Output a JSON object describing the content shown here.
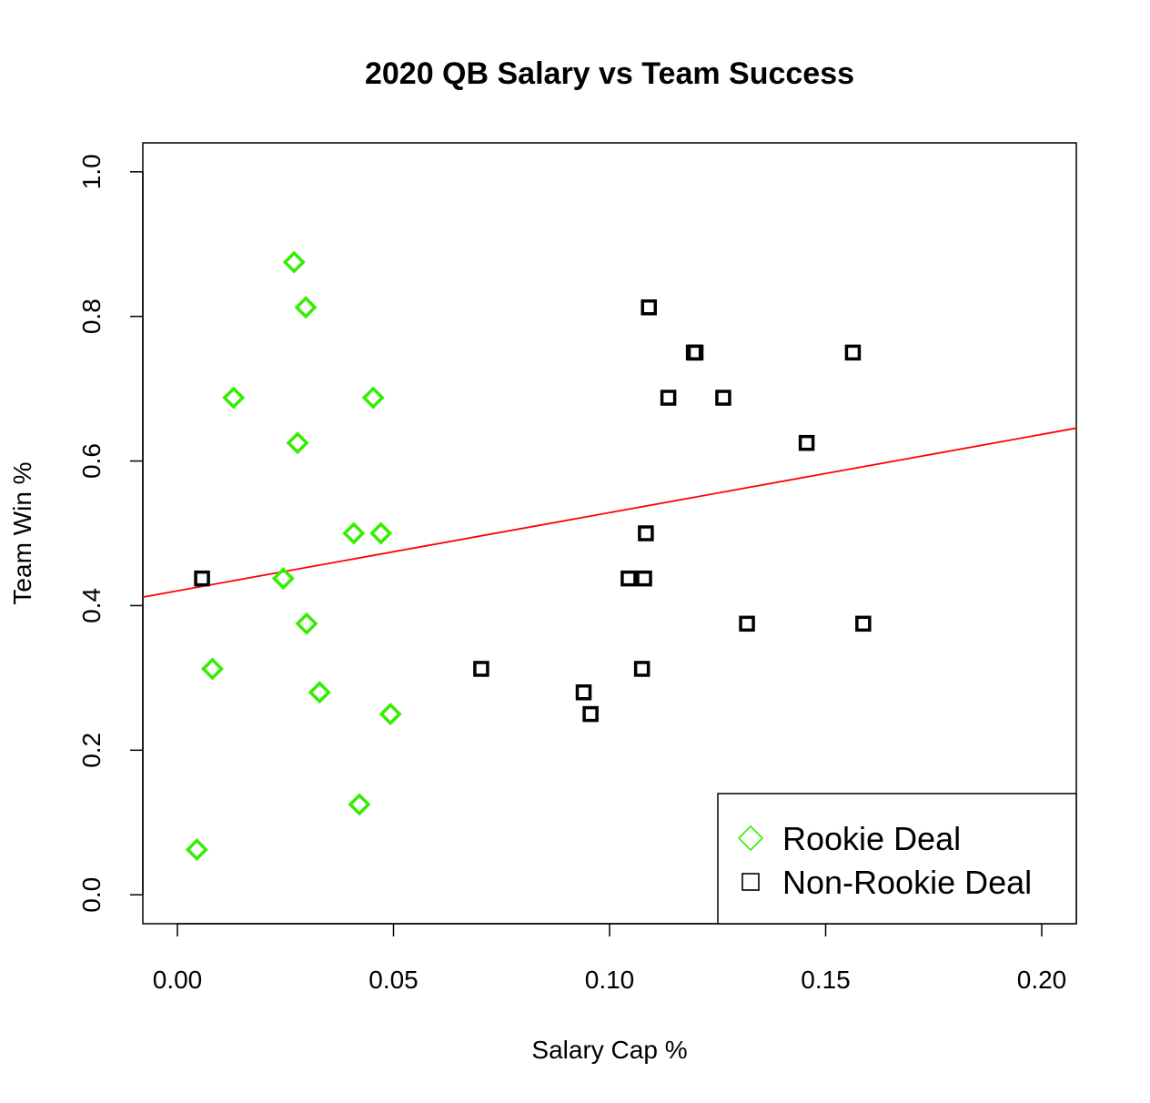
{
  "chart_data": {
    "type": "scatter",
    "title": "2020 QB Salary vs Team Success",
    "xlabel": "Salary Cap %",
    "ylabel": "Team Win %",
    "xlim": [
      -0.008,
      0.208
    ],
    "ylim": [
      -0.04,
      1.04
    ],
    "xticks": [
      0.0,
      0.05,
      0.1,
      0.15,
      0.2
    ],
    "xtick_labels": [
      "0.00",
      "0.05",
      "0.10",
      "0.15",
      "0.20"
    ],
    "yticks": [
      0.0,
      0.2,
      0.4,
      0.6,
      0.8,
      1.0
    ],
    "ytick_labels": [
      "0.0",
      "0.2",
      "0.4",
      "0.6",
      "0.8",
      "1.0"
    ],
    "grid": false,
    "legend_position": "bottom-right",
    "series": [
      {
        "name": "Rookie Deal",
        "marker": "diamond",
        "color": "#33ee00",
        "points": [
          {
            "x": 0.027,
            "y": 0.875
          },
          {
            "x": 0.0297,
            "y": 0.8125
          },
          {
            "x": 0.013,
            "y": 0.6875
          },
          {
            "x": 0.0453,
            "y": 0.6875
          },
          {
            "x": 0.0278,
            "y": 0.625
          },
          {
            "x": 0.0408,
            "y": 0.5
          },
          {
            "x": 0.0471,
            "y": 0.5
          },
          {
            "x": 0.0245,
            "y": 0.4375
          },
          {
            "x": 0.0299,
            "y": 0.375
          },
          {
            "x": 0.0081,
            "y": 0.3125
          },
          {
            "x": 0.0329,
            "y": 0.28
          },
          {
            "x": 0.0493,
            "y": 0.25
          },
          {
            "x": 0.0421,
            "y": 0.125
          },
          {
            "x": 0.0045,
            "y": 0.0625
          }
        ]
      },
      {
        "name": "Non-Rookie Deal",
        "marker": "square",
        "color": "#000000",
        "points": [
          {
            "x": 0.1091,
            "y": 0.8125
          },
          {
            "x": 0.1195,
            "y": 0.75
          },
          {
            "x": 0.1199,
            "y": 0.75
          },
          {
            "x": 0.1563,
            "y": 0.75
          },
          {
            "x": 0.1136,
            "y": 0.6875
          },
          {
            "x": 0.1263,
            "y": 0.6875
          },
          {
            "x": 0.1456,
            "y": 0.625
          },
          {
            "x": 0.1084,
            "y": 0.5
          },
          {
            "x": 0.0057,
            "y": 0.4375
          },
          {
            "x": 0.1044,
            "y": 0.4375
          },
          {
            "x": 0.108,
            "y": 0.4375
          },
          {
            "x": 0.1318,
            "y": 0.375
          },
          {
            "x": 0.1587,
            "y": 0.375
          },
          {
            "x": 0.0703,
            "y": 0.3125
          },
          {
            "x": 0.1075,
            "y": 0.3125
          },
          {
            "x": 0.094,
            "y": 0.28
          },
          {
            "x": 0.0956,
            "y": 0.25
          }
        ]
      }
    ],
    "regression_line": {
      "intercept": 0.4204,
      "slope": 1.082,
      "color": "#ff0000"
    }
  }
}
